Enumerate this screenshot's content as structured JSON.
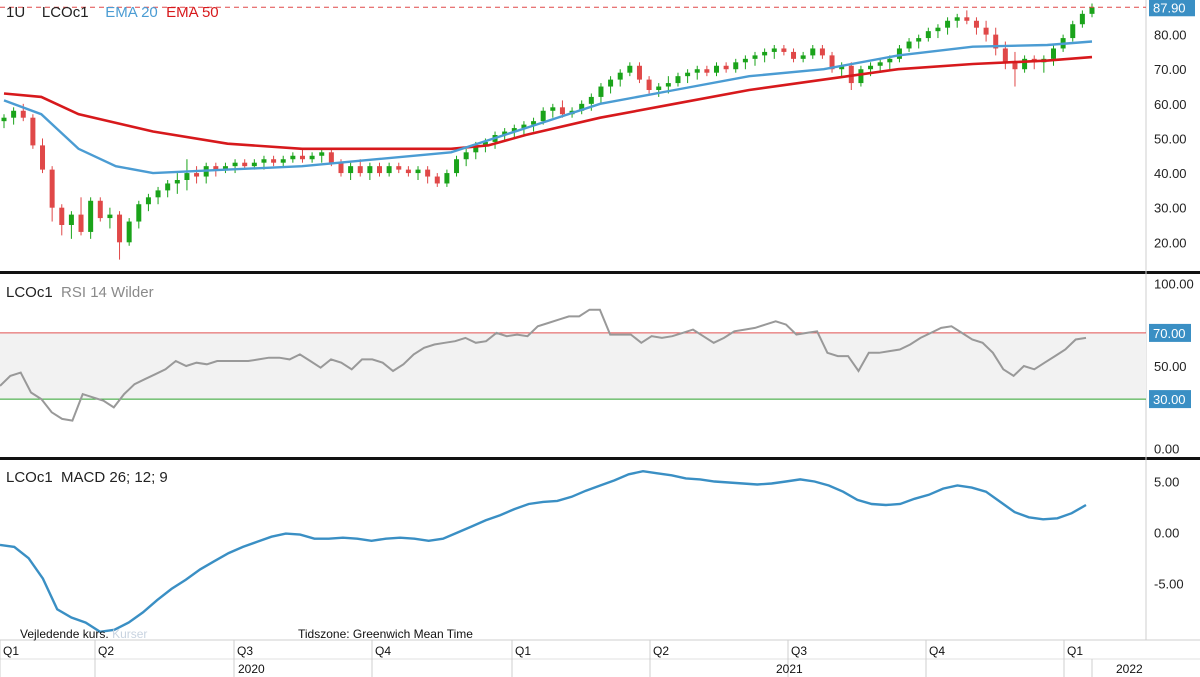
{
  "header": {
    "timeframe": "1U",
    "symbol": "LCOc1",
    "ema20_label": "EMA 20",
    "ema50_label": "EMA 50",
    "rsi_label": "RSI 14 Wilder",
    "macd_label": "MACD 26; 12; 9"
  },
  "footer": {
    "quote_note": "Vejledende kurs.",
    "provider_faded": "Kurser",
    "timezone": "Tidszone: Greenwich Mean Time"
  },
  "colors": {
    "up": "#1aa31a",
    "down": "#e04848",
    "ema20": "#4b9cd3",
    "ema50": "#d7191c",
    "rsi": "#999999",
    "macd": "#3a8fc4",
    "last_price_badge": "#3a8fc4",
    "rsi_band": "#f2f2f2",
    "rsi_upper_line": "#e05050",
    "rsi_lower_line": "#2ca02c"
  },
  "chart_data": [
    {
      "type": "candlestick",
      "id": "price",
      "ylim": [
        12,
        90
      ],
      "yticks": [
        "20.00",
        "30.00",
        "40.00",
        "50.00",
        "60.00",
        "70.00",
        "80.00"
      ],
      "last_price": 87.9,
      "last_price_label": "87.90",
      "candles": [
        [
          55,
          57,
          53,
          56
        ],
        [
          56,
          59,
          54,
          58
        ],
        [
          58,
          60,
          55,
          56
        ],
        [
          56,
          57,
          47,
          48
        ],
        [
          48,
          50,
          40,
          41
        ],
        [
          41,
          42,
          26,
          30
        ],
        [
          30,
          31,
          22,
          25
        ],
        [
          25,
          29,
          21,
          28
        ],
        [
          28,
          33,
          22,
          23
        ],
        [
          23,
          33,
          21,
          32
        ],
        [
          32,
          33,
          26,
          27
        ],
        [
          27,
          30,
          24,
          28
        ],
        [
          28,
          29,
          15,
          20
        ],
        [
          20,
          27,
          19,
          26
        ],
        [
          26,
          32,
          24,
          31
        ],
        [
          31,
          34,
          29,
          33
        ],
        [
          33,
          36,
          31,
          35
        ],
        [
          35,
          38,
          33,
          37
        ],
        [
          37,
          40,
          34,
          38
        ],
        [
          38,
          44,
          35,
          40
        ],
        [
          40,
          42,
          37,
          39
        ],
        [
          39,
          43,
          37,
          42
        ],
        [
          42,
          43,
          39,
          41
        ],
        [
          41,
          43,
          40,
          42
        ],
        [
          42,
          44,
          40,
          43
        ],
        [
          43,
          44,
          41,
          42
        ],
        [
          42,
          44,
          41,
          43
        ],
        [
          43,
          45,
          41,
          44
        ],
        [
          44,
          45,
          42,
          43
        ],
        [
          43,
          45,
          42,
          44
        ],
        [
          44,
          46,
          43,
          45
        ],
        [
          45,
          47,
          43,
          44
        ],
        [
          44,
          46,
          43,
          45
        ],
        [
          45,
          47,
          43,
          46
        ],
        [
          46,
          47,
          42,
          43
        ],
        [
          43,
          44,
          39,
          40
        ],
        [
          40,
          43,
          38,
          42
        ],
        [
          42,
          44,
          39,
          40
        ],
        [
          40,
          43,
          38,
          42
        ],
        [
          42,
          43,
          39,
          40
        ],
        [
          40,
          43,
          39,
          42
        ],
        [
          42,
          43,
          40,
          41
        ],
        [
          41,
          42,
          39,
          40
        ],
        [
          40,
          42,
          38,
          41
        ],
        [
          41,
          42,
          37,
          39
        ],
        [
          39,
          40,
          36,
          37
        ],
        [
          37,
          41,
          36,
          40
        ],
        [
          40,
          45,
          39,
          44
        ],
        [
          44,
          47,
          42,
          46
        ],
        [
          46,
          49,
          44,
          48
        ],
        [
          48,
          50,
          46,
          49
        ],
        [
          49,
          52,
          47,
          51
        ],
        [
          51,
          53,
          49,
          52
        ],
        [
          52,
          54,
          50,
          53
        ],
        [
          53,
          55,
          51,
          54
        ],
        [
          54,
          56,
          52,
          55
        ],
        [
          55,
          59,
          54,
          58
        ],
        [
          58,
          60,
          56,
          59
        ],
        [
          59,
          61,
          56,
          57
        ],
        [
          57,
          59,
          56,
          58
        ],
        [
          58,
          61,
          57,
          60
        ],
        [
          60,
          63,
          58,
          62
        ],
        [
          62,
          66,
          60,
          65
        ],
        [
          65,
          68,
          63,
          67
        ],
        [
          67,
          70,
          65,
          69
        ],
        [
          69,
          72,
          68,
          71
        ],
        [
          71,
          72,
          66,
          67
        ],
        [
          67,
          68,
          63,
          64
        ],
        [
          64,
          66,
          62,
          65
        ],
        [
          65,
          68,
          63,
          66
        ],
        [
          66,
          69,
          65,
          68
        ],
        [
          68,
          70,
          66,
          69
        ],
        [
          69,
          71,
          67,
          70
        ],
        [
          70,
          71,
          68,
          69
        ],
        [
          69,
          72,
          68,
          71
        ],
        [
          71,
          72,
          69,
          70
        ],
        [
          70,
          73,
          69,
          72
        ],
        [
          72,
          74,
          70,
          73
        ],
        [
          73,
          75,
          71,
          74
        ],
        [
          74,
          76,
          72,
          75
        ],
        [
          75,
          77,
          73,
          76
        ],
        [
          76,
          77,
          74,
          75
        ],
        [
          75,
          76,
          72,
          73
        ],
        [
          73,
          75,
          72,
          74
        ],
        [
          74,
          77,
          73,
          76
        ],
        [
          76,
          77,
          73,
          74
        ],
        [
          74,
          75,
          69,
          70
        ],
        [
          70,
          72,
          68,
          71
        ],
        [
          71,
          72,
          64,
          66
        ],
        [
          66,
          71,
          65,
          70
        ],
        [
          70,
          72,
          68,
          71
        ],
        [
          71,
          73,
          69,
          72
        ],
        [
          72,
          74,
          70,
          73
        ],
        [
          73,
          77,
          72,
          76
        ],
        [
          76,
          79,
          75,
          78
        ],
        [
          78,
          80,
          76,
          79
        ],
        [
          79,
          82,
          78,
          81
        ],
        [
          81,
          83,
          79,
          82
        ],
        [
          82,
          85,
          80,
          84
        ],
        [
          84,
          86,
          82,
          85
        ],
        [
          85,
          87,
          83,
          84
        ],
        [
          84,
          85,
          80,
          82
        ],
        [
          82,
          84,
          78,
          80
        ],
        [
          80,
          82,
          74,
          76
        ],
        [
          76,
          78,
          70,
          72
        ],
        [
          72,
          75,
          65,
          70
        ],
        [
          70,
          74,
          69,
          73
        ],
        [
          73,
          74,
          70,
          72
        ],
        [
          72,
          74,
          69,
          73
        ],
        [
          73,
          77,
          71,
          76
        ],
        [
          76,
          80,
          75,
          79
        ],
        [
          79,
          84,
          78,
          83
        ],
        [
          83,
          87,
          82,
          86
        ],
        [
          86,
          89,
          85,
          87.9
        ]
      ],
      "ema20": [
        [
          0,
          61
        ],
        [
          5,
          57
        ],
        [
          10,
          47
        ],
        [
          15,
          42
        ],
        [
          20,
          40
        ],
        [
          30,
          41
        ],
        [
          40,
          42
        ],
        [
          50,
          44
        ],
        [
          60,
          46
        ],
        [
          70,
          53
        ],
        [
          80,
          60
        ],
        [
          90,
          64
        ],
        [
          100,
          68
        ],
        [
          110,
          70
        ],
        [
          120,
          74
        ],
        [
          130,
          76.5
        ],
        [
          140,
          77
        ],
        [
          146,
          78
        ]
      ],
      "ema50": [
        [
          0,
          63
        ],
        [
          5,
          62
        ],
        [
          10,
          57
        ],
        [
          20,
          52
        ],
        [
          30,
          48.5
        ],
        [
          40,
          47
        ],
        [
          50,
          47
        ],
        [
          60,
          47
        ],
        [
          65,
          48
        ],
        [
          70,
          51
        ],
        [
          80,
          56
        ],
        [
          90,
          60
        ],
        [
          100,
          64
        ],
        [
          110,
          67
        ],
        [
          120,
          70
        ],
        [
          130,
          71.5
        ],
        [
          140,
          72.5
        ],
        [
          146,
          73.5
        ]
      ]
    },
    {
      "type": "line",
      "id": "rsi",
      "ylim": [
        -5,
        105
      ],
      "yticks": [
        "0.00",
        "50.00",
        "100.00"
      ],
      "reference_lines": [
        {
          "value": 70,
          "label": "70.00"
        },
        {
          "value": 30,
          "label": "30.00"
        }
      ],
      "values": [
        38,
        44,
        46,
        34,
        30,
        22,
        18,
        17,
        33,
        31,
        29,
        25,
        33,
        39,
        42,
        45,
        48,
        53,
        50,
        52,
        51,
        53,
        53,
        53,
        53,
        54,
        55,
        55,
        54,
        57,
        53,
        49,
        54,
        52,
        48,
        54,
        54,
        52,
        47,
        51,
        57,
        61,
        63,
        64,
        65,
        67,
        64,
        65,
        70,
        68,
        69,
        68,
        74,
        76,
        78,
        80,
        80,
        84,
        84,
        69,
        69,
        69,
        64,
        68,
        67,
        68,
        70,
        72,
        68,
        64,
        67,
        71,
        72,
        73,
        75,
        77,
        75,
        69,
        70,
        71,
        58,
        56,
        56,
        47,
        58,
        58,
        59,
        60,
        63,
        67,
        70,
        73,
        74,
        70,
        66,
        64,
        58,
        48,
        44,
        50,
        48,
        52,
        56,
        60,
        66,
        67
      ]
    },
    {
      "type": "line",
      "id": "macd",
      "ylim": [
        -10.5,
        7
      ],
      "yticks": [
        "-5.00",
        "0.00",
        "5.00"
      ],
      "values": [
        [
          0,
          -1.2
        ],
        [
          2,
          -1.4
        ],
        [
          4,
          -2.5
        ],
        [
          6,
          -4.5
        ],
        [
          8,
          -7.5
        ],
        [
          10,
          -8.3
        ],
        [
          12,
          -8.8
        ],
        [
          14,
          -9.7
        ],
        [
          16,
          -9.5
        ],
        [
          18,
          -8.8
        ],
        [
          20,
          -7.8
        ],
        [
          22,
          -6.6
        ],
        [
          24,
          -5.5
        ],
        [
          26,
          -4.6
        ],
        [
          28,
          -3.6
        ],
        [
          30,
          -2.8
        ],
        [
          32,
          -2.0
        ],
        [
          34,
          -1.4
        ],
        [
          36,
          -0.9
        ],
        [
          38,
          -0.4
        ],
        [
          40,
          -0.1
        ],
        [
          42,
          -0.2
        ],
        [
          44,
          -0.6
        ],
        [
          46,
          -0.6
        ],
        [
          48,
          -0.5
        ],
        [
          50,
          -0.6
        ],
        [
          52,
          -0.8
        ],
        [
          54,
          -0.6
        ],
        [
          56,
          -0.5
        ],
        [
          58,
          -0.6
        ],
        [
          60,
          -0.8
        ],
        [
          62,
          -0.6
        ],
        [
          64,
          0
        ],
        [
          66,
          0.6
        ],
        [
          68,
          1.2
        ],
        [
          70,
          1.7
        ],
        [
          72,
          2.3
        ],
        [
          74,
          2.8
        ],
        [
          76,
          3.0
        ],
        [
          78,
          3.1
        ],
        [
          80,
          3.5
        ],
        [
          82,
          4.1
        ],
        [
          84,
          4.6
        ],
        [
          86,
          5.1
        ],
        [
          88,
          5.7
        ],
        [
          90,
          6.0
        ],
        [
          92,
          5.8
        ],
        [
          94,
          5.6
        ],
        [
          96,
          5.3
        ],
        [
          98,
          5.2
        ],
        [
          100,
          5.0
        ],
        [
          102,
          4.9
        ],
        [
          104,
          4.8
        ],
        [
          106,
          4.7
        ],
        [
          108,
          4.8
        ],
        [
          110,
          5.0
        ],
        [
          112,
          5.2
        ],
        [
          114,
          5.0
        ],
        [
          116,
          4.6
        ],
        [
          118,
          4.0
        ],
        [
          120,
          3.2
        ],
        [
          122,
          2.8
        ],
        [
          124,
          2.7
        ],
        [
          126,
          2.8
        ],
        [
          128,
          3.3
        ],
        [
          130,
          3.7
        ],
        [
          132,
          4.3
        ],
        [
          134,
          4.6
        ],
        [
          136,
          4.4
        ],
        [
          138,
          4.0
        ],
        [
          140,
          3.0
        ],
        [
          142,
          2.0
        ],
        [
          144,
          1.5
        ],
        [
          146,
          1.3
        ],
        [
          148,
          1.4
        ],
        [
          150,
          1.9
        ],
        [
          152,
          2.7
        ]
      ]
    }
  ],
  "time_axis": {
    "quarters": [
      "Q1",
      "Q2",
      "Q3",
      "Q4",
      "Q1",
      "Q2",
      "Q3",
      "Q4",
      "Q1"
    ],
    "years": [
      "2020",
      "2021",
      "2022"
    ]
  }
}
